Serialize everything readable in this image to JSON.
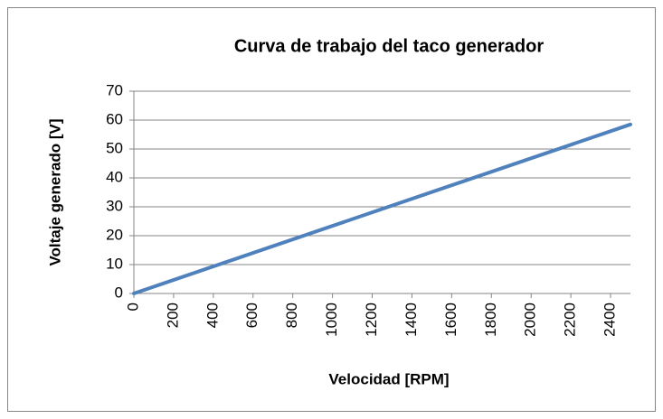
{
  "chart_data": {
    "type": "scatter",
    "title": "Curva de trabajo del taco generador",
    "xlabel": "Velocidad [RPM]",
    "ylabel": "Voltaje generado [V]",
    "x": [
      0,
      2500
    ],
    "series": [
      {
        "color": "#4f81bd",
        "values": [
          0,
          58.5
        ]
      }
    ],
    "xlim": [
      0,
      2500
    ],
    "xticks": [
      0,
      200,
      400,
      600,
      800,
      1000,
      1200,
      1400,
      1600,
      1800,
      2000,
      2200,
      2400
    ],
    "ylim": [
      0,
      70
    ],
    "yticks": [
      0,
      10,
      20,
      30,
      40,
      50,
      60,
      70
    ],
    "grid": true
  }
}
